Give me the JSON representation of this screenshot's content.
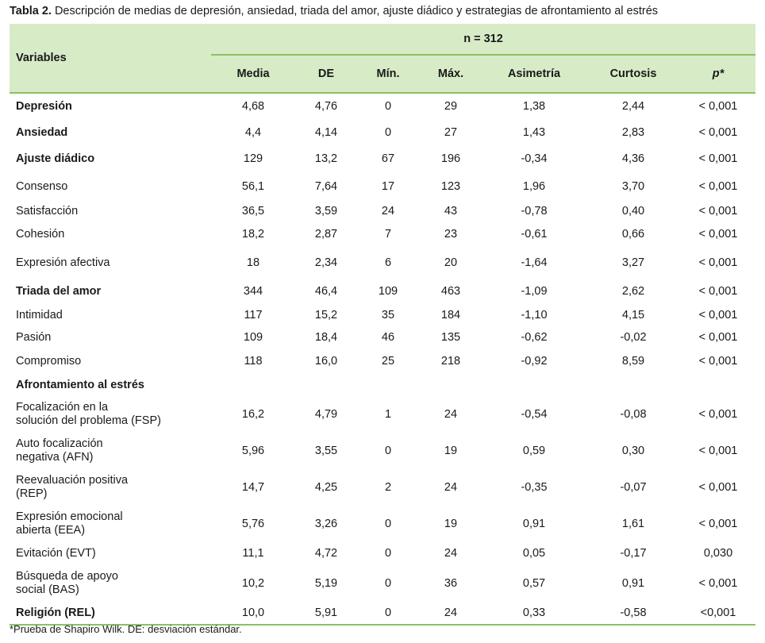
{
  "caption": {
    "label": "Tabla 2.",
    "text": "Descripción de medias de depresión, ansiedad, triada del amor, ajuste diádico y estrategias de afrontamiento al estrés"
  },
  "header": {
    "variables": "Variables",
    "n": "n = 312",
    "columns": [
      "Media",
      "DE",
      "Mín.",
      "Máx.",
      "Asimetría",
      "Curtosis",
      "p*"
    ]
  },
  "rows": [
    {
      "name": "Depresión",
      "bold": true,
      "values": [
        "4,68",
        "4,76",
        "0",
        "29",
        "1,38",
        "2,44",
        "< 0,001"
      ]
    },
    {
      "name": "Ansiedad",
      "bold": true,
      "values": [
        "4,4",
        "4,14",
        "0",
        "27",
        "1,43",
        "2,83",
        "< 0,001"
      ]
    },
    {
      "name": "Ajuste diádico",
      "bold": true,
      "values": [
        "129",
        "13,2",
        "67",
        "196",
        "-0,34",
        "4,36",
        "< 0,001"
      ]
    },
    {
      "name": "Consenso",
      "bold": false,
      "values": [
        "56,1",
        "7,64",
        "17",
        "123",
        "1,96",
        "3,70",
        "< 0,001"
      ]
    },
    {
      "name": "Satisfacción",
      "bold": false,
      "values": [
        "36,5",
        "3,59",
        "24",
        "43",
        "-0,78",
        "0,40",
        "< 0,001"
      ]
    },
    {
      "name": "Cohesión",
      "bold": false,
      "values": [
        "18,2",
        "2,87",
        "7",
        "23",
        "-0,61",
        "0,66",
        "< 0,001"
      ]
    },
    {
      "name": "Expresión afectiva",
      "bold": false,
      "values": [
        "18",
        "2,34",
        "6",
        "20",
        "-1,64",
        "3,27",
        "< 0,001"
      ]
    },
    {
      "name": "Triada del amor",
      "bold": true,
      "values": [
        "344",
        "46,4",
        "109",
        "463",
        "-1,09",
        "2,62",
        "< 0,001"
      ]
    },
    {
      "name": "Intimidad",
      "bold": false,
      "values": [
        "117",
        "15,2",
        "35",
        "184",
        "-1,10",
        "4,15",
        "< 0,001"
      ]
    },
    {
      "name": "Pasión",
      "bold": false,
      "values": [
        "109",
        "18,4",
        "46",
        "135",
        "-0,62",
        "-0,02",
        "< 0,001"
      ]
    },
    {
      "name": "Compromiso",
      "bold": false,
      "values": [
        "118",
        "16,0",
        "25",
        "218",
        "-0,92",
        "8,59",
        "< 0,001"
      ]
    },
    {
      "name": "Afrontamiento al estrés",
      "bold": true,
      "values": [
        "",
        "",
        "",
        "",
        "",
        "",
        ""
      ]
    },
    {
      "name": "Focalización en la\nsolución del problema (FSP)",
      "bold": false,
      "values": [
        "16,2",
        "4,79",
        "1",
        "24",
        "-0,54",
        "-0,08",
        "< 0,001"
      ]
    },
    {
      "name": "Auto focalización\nnegativa (AFN)",
      "bold": false,
      "values": [
        "5,96",
        "3,55",
        "0",
        "19",
        "0,59",
        "0,30",
        "< 0,001"
      ]
    },
    {
      "name": "Reevaluación positiva\n(REP)",
      "bold": false,
      "values": [
        "14,7",
        "4,25",
        "2",
        "24",
        "-0,35",
        "-0,07",
        "< 0,001"
      ]
    },
    {
      "name": "Expresión emocional\nabierta (EEA)",
      "bold": false,
      "values": [
        "5,76",
        "3,26",
        "0",
        "19",
        "0,91",
        "1,61",
        "< 0,001"
      ]
    },
    {
      "name": "Evitación (EVT)",
      "bold": false,
      "values": [
        "11,1",
        "4,72",
        "0",
        "24",
        "0,05",
        "-0,17",
        "0,030"
      ]
    },
    {
      "name": "Búsqueda de apoyo\nsocial (BAS)",
      "bold": false,
      "values": [
        "10,2",
        "5,19",
        "0",
        "36",
        "0,57",
        "0,91",
        "< 0,001"
      ]
    },
    {
      "name": "Religión (REL)",
      "bold": true,
      "values": [
        "10,0",
        "5,91",
        "0",
        "24",
        "0,33",
        "-0,58",
        "<0,001"
      ]
    }
  ],
  "footnote": "*Prueba de Shapiro Wilk. DE: desviación estándar."
}
